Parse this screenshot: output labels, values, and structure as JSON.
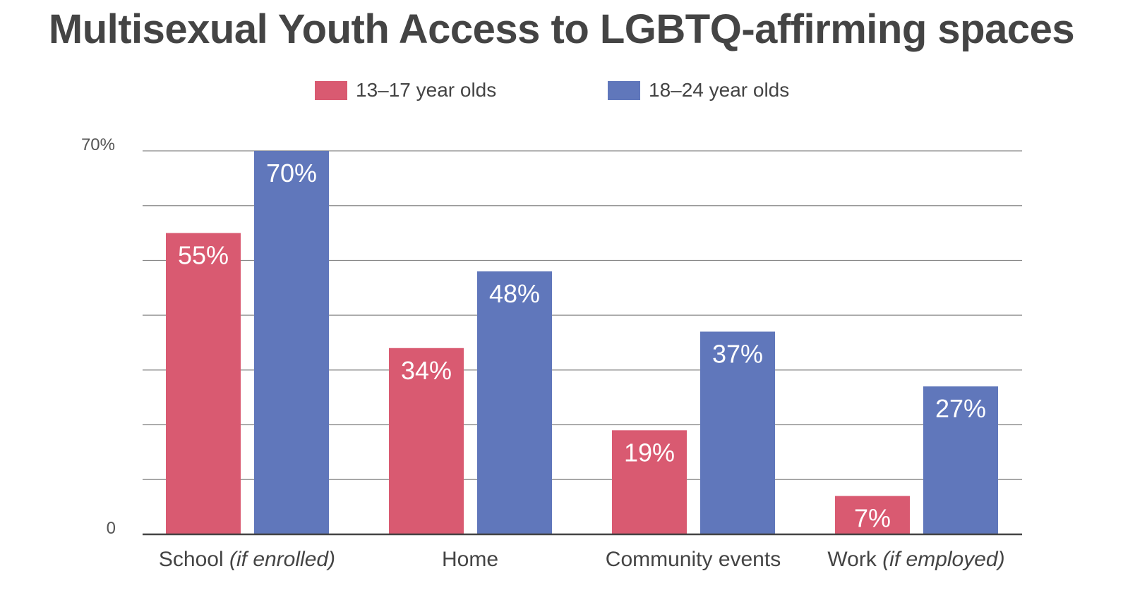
{
  "title": "Multisexual Youth Access to LGBTQ-affirming spaces",
  "colors": {
    "series1": "#d95a71",
    "series2": "#6077bb",
    "grid": "#888888",
    "axis": "#444444",
    "text": "#444444"
  },
  "chart_data": {
    "type": "bar",
    "title": "Multisexual Youth Access to LGBTQ-affirming spaces",
    "categories": [
      {
        "main": "School",
        "note": "(if enrolled)"
      },
      {
        "main": "Home",
        "note": ""
      },
      {
        "main": "Community events",
        "note": ""
      },
      {
        "main": "Work",
        "note": "(if employed)"
      }
    ],
    "series": [
      {
        "name": "13–17 year olds",
        "values": [
          55,
          34,
          19,
          7
        ],
        "labels": [
          "55%",
          "34%",
          "19%",
          "7%"
        ]
      },
      {
        "name": "18–24 year olds",
        "values": [
          70,
          48,
          37,
          27
        ],
        "labels": [
          "70%",
          "48%",
          "37%",
          "27%"
        ]
      }
    ],
    "yticks": [
      {
        "value": 0,
        "label": "0"
      },
      {
        "value": 70,
        "label": "70%"
      }
    ],
    "ylim": [
      0,
      70
    ],
    "gridlines": [
      10,
      20,
      30,
      40,
      50,
      60,
      70
    ],
    "legend_position": "top-center",
    "xlabel": "",
    "ylabel": ""
  }
}
